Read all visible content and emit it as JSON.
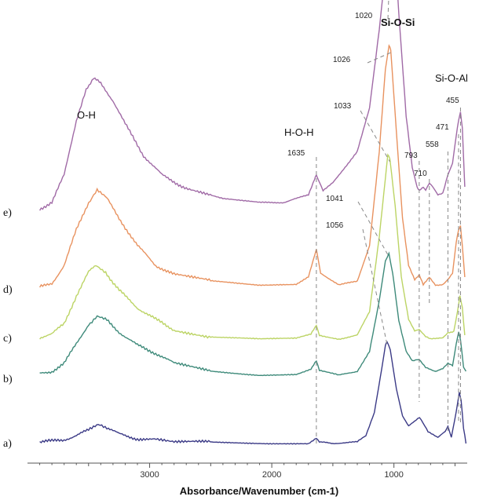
{
  "chart_data": {
    "type": "line",
    "title": "",
    "xlabel": "Absorbance/Wavenumber (cm-1)",
    "ylabel": "",
    "xlim": [
      4000,
      400
    ],
    "x_reversed": true,
    "x_ticks": [
      {
        "value": 3000,
        "label": "3000"
      },
      {
        "value": 2000,
        "label": "2000"
      },
      {
        "value": 1000,
        "label": "1000"
      }
    ],
    "grid": false,
    "series": [
      {
        "name": "a)",
        "color": "#3b3a86",
        "points": [
          [
            3900,
            0.02
          ],
          [
            3800,
            0.03
          ],
          [
            3700,
            0.05
          ],
          [
            3600,
            0.1
          ],
          [
            3500,
            0.17
          ],
          [
            3420,
            0.23
          ],
          [
            3350,
            0.2
          ],
          [
            3250,
            0.12
          ],
          [
            3100,
            0.06
          ],
          [
            2960,
            0.05
          ],
          [
            2800,
            0.03
          ],
          [
            2400,
            0.01
          ],
          [
            2000,
            0.0
          ],
          [
            1700,
            0.0
          ],
          [
            1650,
            0.05
          ],
          [
            1635,
            0.07
          ],
          [
            1610,
            0.02
          ],
          [
            1500,
            0.0
          ],
          [
            1300,
            0.02
          ],
          [
            1230,
            0.1
          ],
          [
            1160,
            0.4
          ],
          [
            1100,
            0.95
          ],
          [
            1070,
            1.25
          ],
          [
            1056,
            1.3
          ],
          [
            1030,
            1.2
          ],
          [
            980,
            0.7
          ],
          [
            930,
            0.35
          ],
          [
            880,
            0.22
          ],
          [
            820,
            0.3
          ],
          [
            790,
            0.33
          ],
          [
            720,
            0.15
          ],
          [
            640,
            0.08
          ],
          [
            580,
            0.15
          ],
          [
            558,
            0.22
          ],
          [
            530,
            0.08
          ],
          [
            490,
            0.4
          ],
          [
            465,
            0.65
          ],
          [
            450,
            0.55
          ],
          [
            430,
            0.2
          ],
          [
            410,
            0.0
          ]
        ]
      },
      {
        "name": "b)",
        "color": "#3e8a7a",
        "points": [
          [
            3900,
            0.02
          ],
          [
            3800,
            0.05
          ],
          [
            3700,
            0.15
          ],
          [
            3600,
            0.4
          ],
          [
            3500,
            0.65
          ],
          [
            3430,
            0.75
          ],
          [
            3350,
            0.7
          ],
          [
            3250,
            0.55
          ],
          [
            3100,
            0.38
          ],
          [
            2950,
            0.28
          ],
          [
            2800,
            0.15
          ],
          [
            2500,
            0.05
          ],
          [
            2100,
            0.0
          ],
          [
            1800,
            0.01
          ],
          [
            1680,
            0.08
          ],
          [
            1635,
            0.18
          ],
          [
            1610,
            0.06
          ],
          [
            1450,
            0.0
          ],
          [
            1300,
            0.05
          ],
          [
            1200,
            0.3
          ],
          [
            1120,
            0.95
          ],
          [
            1070,
            1.45
          ],
          [
            1041,
            1.55
          ],
          [
            1010,
            1.3
          ],
          [
            960,
            0.7
          ],
          [
            900,
            0.3
          ],
          [
            850,
            0.18
          ],
          [
            793,
            0.2
          ],
          [
            740,
            0.1
          ],
          [
            660,
            0.05
          ],
          [
            600,
            0.08
          ],
          [
            558,
            0.15
          ],
          [
            520,
            0.12
          ],
          [
            490,
            0.4
          ],
          [
            470,
            0.55
          ],
          [
            455,
            0.45
          ],
          [
            430,
            0.1
          ],
          [
            410,
            0.05
          ]
        ]
      },
      {
        "name": "c)",
        "color": "#bcd465",
        "points": [
          [
            3900,
            0.02
          ],
          [
            3800,
            0.06
          ],
          [
            3700,
            0.2
          ],
          [
            3600,
            0.55
          ],
          [
            3500,
            0.85
          ],
          [
            3440,
            0.95
          ],
          [
            3360,
            0.85
          ],
          [
            3250,
            0.62
          ],
          [
            3100,
            0.4
          ],
          [
            2950,
            0.25
          ],
          [
            2800,
            0.12
          ],
          [
            2500,
            0.03
          ],
          [
            2100,
            0.0
          ],
          [
            1800,
            0.01
          ],
          [
            1680,
            0.06
          ],
          [
            1635,
            0.18
          ],
          [
            1610,
            0.05
          ],
          [
            1450,
            0.0
          ],
          [
            1300,
            0.05
          ],
          [
            1200,
            0.35
          ],
          [
            1120,
            1.3
          ],
          [
            1070,
            2.05
          ],
          [
            1050,
            2.35
          ],
          [
            1033,
            2.3
          ],
          [
            990,
            1.7
          ],
          [
            940,
            0.8
          ],
          [
            880,
            0.25
          ],
          [
            830,
            0.1
          ],
          [
            793,
            0.12
          ],
          [
            740,
            0.03
          ],
          [
            700,
            0.0
          ],
          [
            600,
            0.02
          ],
          [
            558,
            0.08
          ],
          [
            510,
            0.1
          ],
          [
            480,
            0.35
          ],
          [
            460,
            0.55
          ],
          [
            440,
            0.4
          ],
          [
            420,
            0.05
          ]
        ]
      },
      {
        "name": "d)",
        "color": "#e8925f",
        "points": [
          [
            3900,
            0.02
          ],
          [
            3800,
            0.07
          ],
          [
            3700,
            0.3
          ],
          [
            3600,
            0.75
          ],
          [
            3500,
            1.1
          ],
          [
            3430,
            1.25
          ],
          [
            3350,
            1.15
          ],
          [
            3250,
            0.9
          ],
          [
            3100,
            0.55
          ],
          [
            2950,
            0.3
          ],
          [
            2800,
            0.18
          ],
          [
            2500,
            0.1
          ],
          [
            2100,
            0.05
          ],
          [
            1800,
            0.06
          ],
          [
            1700,
            0.15
          ],
          [
            1635,
            0.5
          ],
          [
            1600,
            0.2
          ],
          [
            1450,
            0.05
          ],
          [
            1300,
            0.1
          ],
          [
            1200,
            0.55
          ],
          [
            1120,
            1.75
          ],
          [
            1070,
            2.8
          ],
          [
            1040,
            3.1
          ],
          [
            1026,
            3.05
          ],
          [
            980,
            2.0
          ],
          [
            930,
            0.9
          ],
          [
            880,
            0.3
          ],
          [
            830,
            0.12
          ],
          [
            793,
            0.18
          ],
          [
            760,
            0.05
          ],
          [
            710,
            0.15
          ],
          [
            660,
            0.05
          ],
          [
            600,
            0.05
          ],
          [
            558,
            0.12
          ],
          [
            520,
            0.2
          ],
          [
            490,
            0.6
          ],
          [
            471,
            0.75
          ],
          [
            455,
            0.8
          ],
          [
            440,
            0.55
          ],
          [
            420,
            0.15
          ]
        ]
      },
      {
        "name": "e)",
        "color": "#a06aa6",
        "points": [
          [
            3900,
            0.02
          ],
          [
            3800,
            0.1
          ],
          [
            3700,
            0.45
          ],
          [
            3600,
            1.15
          ],
          [
            3520,
            1.55
          ],
          [
            3460,
            1.68
          ],
          [
            3400,
            1.62
          ],
          [
            3300,
            1.4
          ],
          [
            3200,
            1.1
          ],
          [
            3050,
            0.7
          ],
          [
            2900,
            0.45
          ],
          [
            2700,
            0.28
          ],
          [
            2400,
            0.15
          ],
          [
            2100,
            0.1
          ],
          [
            1900,
            0.1
          ],
          [
            1700,
            0.2
          ],
          [
            1650,
            0.4
          ],
          [
            1635,
            0.45
          ],
          [
            1580,
            0.25
          ],
          [
            1500,
            0.35
          ],
          [
            1400,
            0.55
          ],
          [
            1300,
            0.75
          ],
          [
            1200,
            1.3
          ],
          [
            1120,
            2.3
          ],
          [
            1060,
            3.2
          ],
          [
            1030,
            3.65
          ],
          [
            1020,
            3.7
          ],
          [
            1000,
            3.55
          ],
          [
            960,
            2.5
          ],
          [
            900,
            1.2
          ],
          [
            850,
            0.55
          ],
          [
            810,
            0.3
          ],
          [
            793,
            0.25
          ],
          [
            760,
            0.3
          ],
          [
            740,
            0.25
          ],
          [
            710,
            0.35
          ],
          [
            680,
            0.3
          ],
          [
            640,
            0.2
          ],
          [
            600,
            0.22
          ],
          [
            558,
            0.45
          ],
          [
            520,
            0.6
          ],
          [
            490,
            0.95
          ],
          [
            471,
            1.15
          ],
          [
            455,
            1.25
          ],
          [
            440,
            1.05
          ],
          [
            420,
            0.3
          ]
        ]
      }
    ],
    "band_labels": [
      {
        "text": "O-H",
        "bold": false
      },
      {
        "text": "H-O-H",
        "bold": false
      },
      {
        "text": "Si-O-Si",
        "bold": true
      },
      {
        "text": "Si-O-Al",
        "bold": false
      }
    ],
    "peak_annotations": [
      {
        "label": "1635",
        "wavenumber": 1635
      },
      {
        "label": "1020",
        "wavenumber": 1020
      },
      {
        "label": "1026",
        "wavenumber": 1026
      },
      {
        "label": "1033",
        "wavenumber": 1033
      },
      {
        "label": "1041",
        "wavenumber": 1041
      },
      {
        "label": "1056",
        "wavenumber": 1056
      },
      {
        "label": "793",
        "wavenumber": 793
      },
      {
        "label": "710",
        "wavenumber": 710
      },
      {
        "label": "558",
        "wavenumber": 558
      },
      {
        "label": "471",
        "wavenumber": 471
      },
      {
        "label": "455",
        "wavenumber": 455
      }
    ]
  }
}
